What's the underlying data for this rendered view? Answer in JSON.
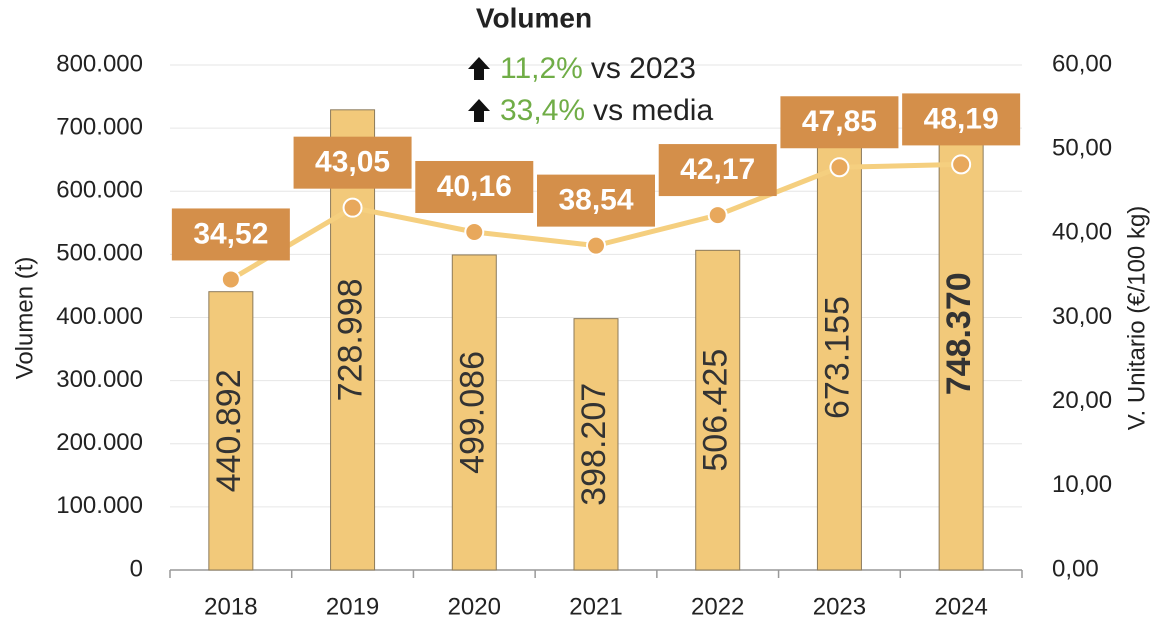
{
  "chart_data": {
    "type": "bar",
    "title": "Volumen",
    "annotations": [
      {
        "value": "11,2%",
        "text": "vs 2023"
      },
      {
        "value": "33,4%",
        "text": "vs media"
      }
    ],
    "ylabel": "Volumen (t)",
    "y2label": "V. Unitario (€/100 kg)",
    "categories": [
      "2018",
      "2019",
      "2020",
      "2021",
      "2022",
      "2023",
      "2024"
    ],
    "series": [
      {
        "type": "bar",
        "color": "#f2c97a",
        "values": [
          440892,
          728998,
          499086,
          398207,
          506425,
          673155,
          748370
        ],
        "value_labels": [
          "440.892",
          "728.998",
          "499.086",
          "398.207",
          "506.425",
          "673.155",
          "748.370"
        ]
      },
      {
        "type": "line",
        "axis": "y2",
        "color": "#f5cf7f",
        "marker_color": "#e8a85c",
        "label_color": "#d48f4a",
        "values": [
          34.52,
          43.05,
          40.16,
          38.54,
          42.17,
          47.85,
          48.19
        ],
        "value_labels": [
          "34,52",
          "43,05",
          "40,16",
          "38,54",
          "42,17",
          "47,85",
          "48,19"
        ]
      }
    ],
    "ylim": [
      0,
      800000
    ],
    "yticks": [
      0,
      {
        "value": 100000,
        "label": "100.000"
      },
      {
        "value": 200000,
        "label": "200.000"
      },
      {
        "value": 300000,
        "label": "300.000"
      },
      {
        "value": 400000,
        "label": "400.000"
      },
      {
        "value": 500000,
        "label": "500.000"
      },
      {
        "value": 600000,
        "label": "600.000"
      },
      {
        "value": 700000,
        "label": "700.000"
      },
      {
        "value": 800000,
        "label": "800.000"
      }
    ],
    "y2lim": [
      0,
      60
    ],
    "y2ticks": [
      {
        "value": 0,
        "label": "0,00"
      },
      {
        "value": 10,
        "label": "10,00"
      },
      {
        "value": 20,
        "label": "20,00"
      },
      {
        "value": 30,
        "label": "30,00"
      },
      {
        "value": 40,
        "label": "40,00"
      },
      {
        "value": 50,
        "label": "50,00"
      },
      {
        "value": 60,
        "label": "60,00"
      }
    ],
    "grid": true
  }
}
